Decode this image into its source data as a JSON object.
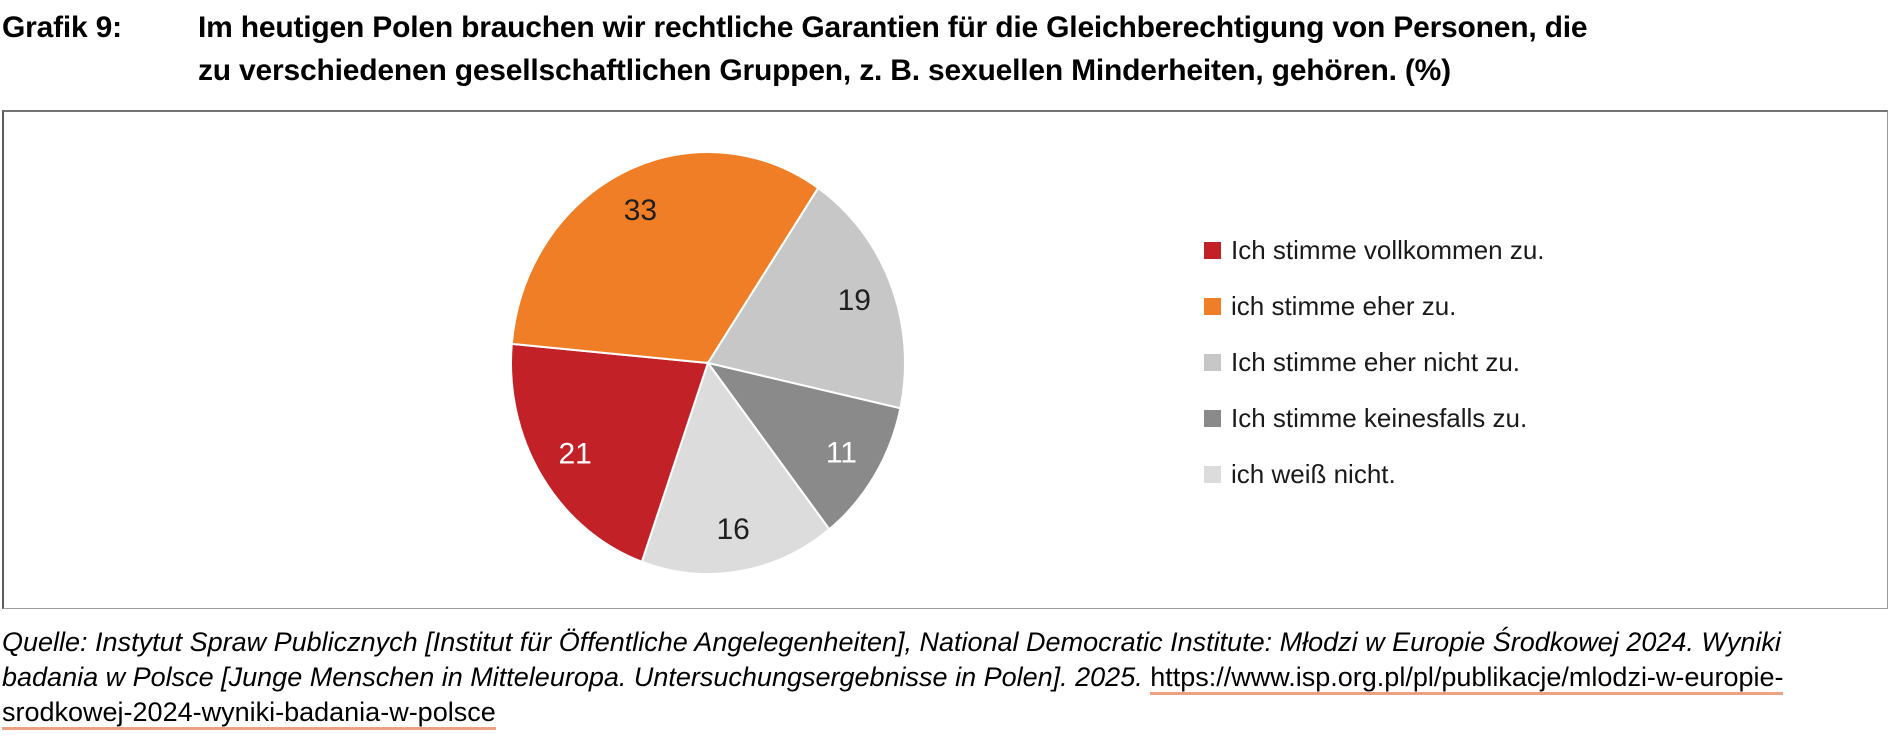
{
  "header": {
    "label": "Grafik 9:",
    "title_line1": "Im heutigen Polen brauchen wir rechtliche Garantien für die Gleichberechtigung von Personen, die",
    "title_line2": "zu verschiedenen gesellschaftlichen Gruppen, z. B. sexuellen Minderheiten, gehören. (%)"
  },
  "chart_data": {
    "type": "pie",
    "title": "Im heutigen Polen brauchen wir rechtliche Garantien für die Gleichberechtigung von Personen, die zu verschiedenen gesellschaftlichen Gruppen, z. B. sexuellen Minderheiten, gehören. (%)",
    "unit": "%",
    "categories": [
      "Ich stimme vollkommen zu.",
      "ich stimme eher zu.",
      "Ich stimme eher nicht zu.",
      "Ich stimme keinesfalls zu.",
      "ich weiß nicht."
    ],
    "values": [
      21,
      33,
      19,
      11,
      16
    ],
    "colors": [
      "#C22128",
      "#F07E27",
      "#C7C7C7",
      "#8A8A8A",
      "#DCDCDC"
    ],
    "label_colors": [
      "#FFFFFF",
      "#1F1F1F",
      "#1F1F1F",
      "#FFFFFF",
      "#1F1F1F"
    ],
    "slice_border_color": "#FFFFFF",
    "start_angle_deg": 199.6,
    "direction": "clockwise",
    "legend_position": "right",
    "grid": false
  },
  "source": {
    "line1": "Quelle: Instytut Spraw Publicznych [Institut für Öffentliche Angelegenheiten], National Democratic Institute: Młodzi w Europie Środkowej 2024. Wyniki",
    "line2_text": "badania w Polsce [Junge Menschen in Mitteleuropa. Untersuchungsergebnisse in Polen]. 2025. ",
    "line2_link": "https://www.isp.org.pl/pl/publikacje/mlodzi-w-europie-",
    "line3_link": "srodkowej-2024-wyniki-badania-w-polsce",
    "link_underline_color": "#EBA183"
  }
}
